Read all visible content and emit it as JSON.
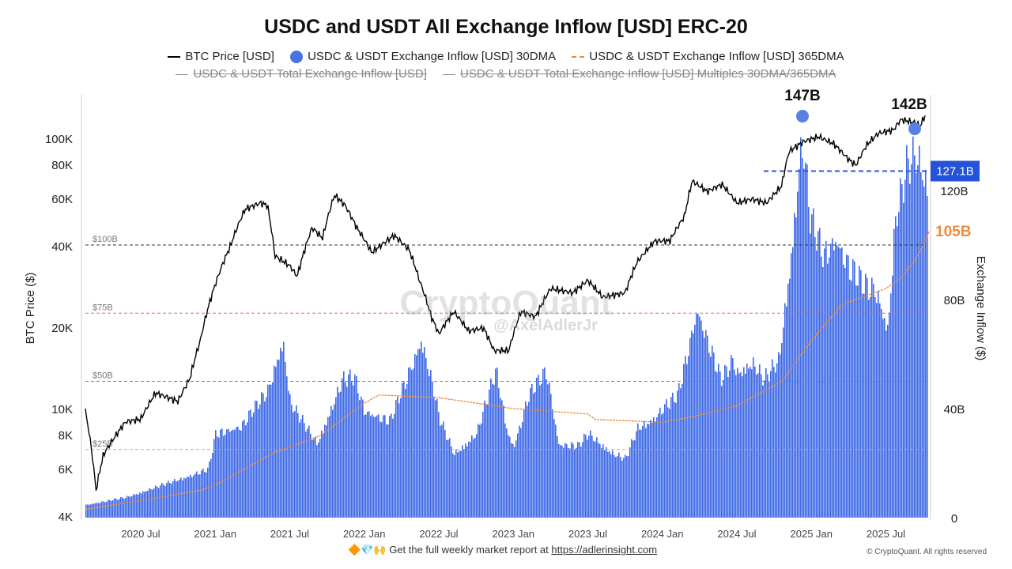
{
  "chart_data": {
    "type": "bar+line",
    "title": "USDC and USDT All Exchange Inflow [USD] ERC-20",
    "legend": [
      {
        "label": "BTC Price [USD]",
        "color": "#000000",
        "active": true
      },
      {
        "label": "USDC & USDT Exchange Inflow [USD] 30DMA",
        "color": "#4a72e8",
        "active": true
      },
      {
        "label": "USDC & USDT Exchange Inflow [USD] 365DMA",
        "color": "#f08a3c",
        "active": true
      },
      {
        "label": "USDC & USDT Total Exchange Inflow [USD]",
        "color": "#888888",
        "active": false
      },
      {
        "label": "USDC & USDT Total Exchange Inflow [USD] Multiples 30DMA/365DMA",
        "color": "#888888",
        "active": false
      }
    ],
    "ylabel_left": "BTC Price ($)",
    "ylabel_right": "Exchange Inflow ($)",
    "x_ticks": [
      {
        "label": "2020 Jul",
        "t": 2020.5
      },
      {
        "label": "2021 Jan",
        "t": 2021.0
      },
      {
        "label": "2021 Jul",
        "t": 2021.5
      },
      {
        "label": "2022 Jan",
        "t": 2022.0
      },
      {
        "label": "2022 Jul",
        "t": 2022.5
      },
      {
        "label": "2023 Jan",
        "t": 2023.0
      },
      {
        "label": "2023 Jul",
        "t": 2023.5
      },
      {
        "label": "2024 Jan",
        "t": 2024.0
      },
      {
        "label": "2024 Jul",
        "t": 2024.5
      },
      {
        "label": "2025 Jan",
        "t": 2025.0
      },
      {
        "label": "2025 Jul",
        "t": 2025.5
      }
    ],
    "xlim": [
      2020.13,
      2025.79
    ],
    "left_axis": {
      "scale": "log",
      "ylim": [
        4000,
        160000
      ],
      "ticks": [
        {
          "label": "4K",
          "v": 4000
        },
        {
          "label": "6K",
          "v": 6000
        },
        {
          "label": "8K",
          "v": 8000
        },
        {
          "label": "10K",
          "v": 10000
        },
        {
          "label": "20K",
          "v": 20000
        },
        {
          "label": "40K",
          "v": 40000
        },
        {
          "label": "60K",
          "v": 60000
        },
        {
          "label": "80K",
          "v": 80000
        },
        {
          "label": "100K",
          "v": 100000
        }
      ]
    },
    "right_axis": {
      "scale": "linear",
      "ylim": [
        0,
        155
      ],
      "unit": "B USD",
      "ticks": [
        {
          "label": "0",
          "v": 0
        },
        {
          "label": "40B",
          "v": 40
        },
        {
          "label": "80B",
          "v": 80
        },
        {
          "label": "120B",
          "v": 120
        }
      ]
    },
    "reference_lines": [
      {
        "label": "$100B",
        "v": 100,
        "color": "#333333"
      },
      {
        "label": "$75B",
        "v": 75,
        "color": "#e0646e"
      },
      {
        "label": "$50B",
        "v": 50,
        "color": "#7a6fd0"
      },
      {
        "label": "$25B",
        "v": 25,
        "color": "#aaaaaa"
      }
    ],
    "annotations": {
      "peak1": {
        "label": "147B",
        "t": 2024.94,
        "v": 147
      },
      "peak2": {
        "label": "142B",
        "t": 2025.7,
        "v": 142
      },
      "current_level": {
        "label": "127.1B",
        "v": 127.1
      },
      "current_365dma": {
        "label": "105B",
        "v": 105
      }
    },
    "inflow_30dma": [
      [
        2020.13,
        5
      ],
      [
        2020.4,
        8
      ],
      [
        2020.7,
        14
      ],
      [
        2020.95,
        19
      ],
      [
        2021.0,
        33
      ],
      [
        2021.17,
        36
      ],
      [
        2021.35,
        50
      ],
      [
        2021.45,
        70
      ],
      [
        2021.5,
        45
      ],
      [
        2021.68,
        29
      ],
      [
        2021.85,
        54
      ],
      [
        2021.93,
        55
      ],
      [
        2022.0,
        42
      ],
      [
        2022.17,
        38
      ],
      [
        2022.38,
        70
      ],
      [
        2022.46,
        51
      ],
      [
        2022.5,
        39
      ],
      [
        2022.6,
        25
      ],
      [
        2022.75,
        33
      ],
      [
        2022.88,
        58
      ],
      [
        2022.96,
        33
      ],
      [
        2023.0,
        28
      ],
      [
        2023.1,
        48
      ],
      [
        2023.22,
        58
      ],
      [
        2023.3,
        29
      ],
      [
        2023.43,
        28
      ],
      [
        2023.5,
        33
      ],
      [
        2023.67,
        25
      ],
      [
        2023.75,
        23
      ],
      [
        2023.83,
        35
      ],
      [
        2023.94,
        39
      ],
      [
        2024.0,
        43
      ],
      [
        2024.1,
        48
      ],
      [
        2024.23,
        82
      ],
      [
        2024.31,
        68
      ],
      [
        2024.39,
        54
      ],
      [
        2024.47,
        62
      ],
      [
        2024.5,
        57
      ],
      [
        2024.6,
        61
      ],
      [
        2024.68,
        54
      ],
      [
        2024.78,
        62
      ],
      [
        2024.86,
        103
      ],
      [
        2024.92,
        142
      ],
      [
        2024.94,
        147
      ],
      [
        2024.99,
        117
      ],
      [
        2025.08,
        103
      ],
      [
        2025.16,
        110
      ],
      [
        2025.24,
        100
      ],
      [
        2025.35,
        91
      ],
      [
        2025.43,
        90
      ],
      [
        2025.51,
        74
      ],
      [
        2025.56,
        117
      ],
      [
        2025.64,
        138
      ],
      [
        2025.7,
        142
      ],
      [
        2025.77,
        132
      ]
    ],
    "inflow_365dma": [
      [
        2020.13,
        3
      ],
      [
        2020.9,
        10
      ],
      [
        2021.0,
        12
      ],
      [
        2021.4,
        24
      ],
      [
        2021.7,
        30
      ],
      [
        2022.0,
        42
      ],
      [
        2022.1,
        45
      ],
      [
        2022.5,
        44
      ],
      [
        2023.0,
        40
      ],
      [
        2023.5,
        38
      ],
      [
        2023.55,
        36
      ],
      [
        2024.0,
        35
      ],
      [
        2024.2,
        37
      ],
      [
        2024.5,
        41
      ],
      [
        2024.8,
        50
      ],
      [
        2025.0,
        65
      ],
      [
        2025.2,
        78
      ],
      [
        2025.5,
        84
      ],
      [
        2025.6,
        88
      ],
      [
        2025.7,
        95
      ],
      [
        2025.75,
        100
      ],
      [
        2025.79,
        105
      ]
    ],
    "btc_price": [
      [
        2020.13,
        9800
      ],
      [
        2020.2,
        5000
      ],
      [
        2020.25,
        6800
      ],
      [
        2020.4,
        9000
      ],
      [
        2020.5,
        9200
      ],
      [
        2020.6,
        11500
      ],
      [
        2020.75,
        10700
      ],
      [
        2020.83,
        13000
      ],
      [
        2020.9,
        18000
      ],
      [
        2021.0,
        29000
      ],
      [
        2021.1,
        40000
      ],
      [
        2021.2,
        55000
      ],
      [
        2021.3,
        58000
      ],
      [
        2021.35,
        57000
      ],
      [
        2021.4,
        37000
      ],
      [
        2021.5,
        34000
      ],
      [
        2021.55,
        31000
      ],
      [
        2021.65,
        47000
      ],
      [
        2021.72,
        43000
      ],
      [
        2021.8,
        62000
      ],
      [
        2021.87,
        57000
      ],
      [
        2021.95,
        47000
      ],
      [
        2022.05,
        38000
      ],
      [
        2022.2,
        44000
      ],
      [
        2022.3,
        39000
      ],
      [
        2022.37,
        30000
      ],
      [
        2022.45,
        22000
      ],
      [
        2022.5,
        19000
      ],
      [
        2022.6,
        23000
      ],
      [
        2022.7,
        19500
      ],
      [
        2022.8,
        20000
      ],
      [
        2022.87,
        16500
      ],
      [
        2022.97,
        16500
      ],
      [
        2023.05,
        23000
      ],
      [
        2023.15,
        22000
      ],
      [
        2023.25,
        28000
      ],
      [
        2023.4,
        27000
      ],
      [
        2023.5,
        30000
      ],
      [
        2023.6,
        26000
      ],
      [
        2023.75,
        27000
      ],
      [
        2023.83,
        35000
      ],
      [
        2023.95,
        42000
      ],
      [
        2024.05,
        42000
      ],
      [
        2024.15,
        52000
      ],
      [
        2024.2,
        70000
      ],
      [
        2024.3,
        64000
      ],
      [
        2024.4,
        68000
      ],
      [
        2024.5,
        58000
      ],
      [
        2024.6,
        60000
      ],
      [
        2024.7,
        58000
      ],
      [
        2024.8,
        67000
      ],
      [
        2024.85,
        90000
      ],
      [
        2024.95,
        98000
      ],
      [
        2025.05,
        102000
      ],
      [
        2025.15,
        96000
      ],
      [
        2025.25,
        84000
      ],
      [
        2025.3,
        80000
      ],
      [
        2025.37,
        95000
      ],
      [
        2025.45,
        105000
      ],
      [
        2025.55,
        108000
      ],
      [
        2025.6,
        118000
      ],
      [
        2025.7,
        115000
      ],
      [
        2025.73,
        112000
      ],
      [
        2025.77,
        124000
      ]
    ]
  },
  "watermark": {
    "brand": "CryptoQuant",
    "author": "@AxelAdlerJr"
  },
  "footer": {
    "emoji": "🔶💎🙌",
    "text": "Get the full weekly market report at ",
    "link": "https://adlerinsight.com",
    "copyright": "© CryptoQuant. All rights reserved"
  }
}
